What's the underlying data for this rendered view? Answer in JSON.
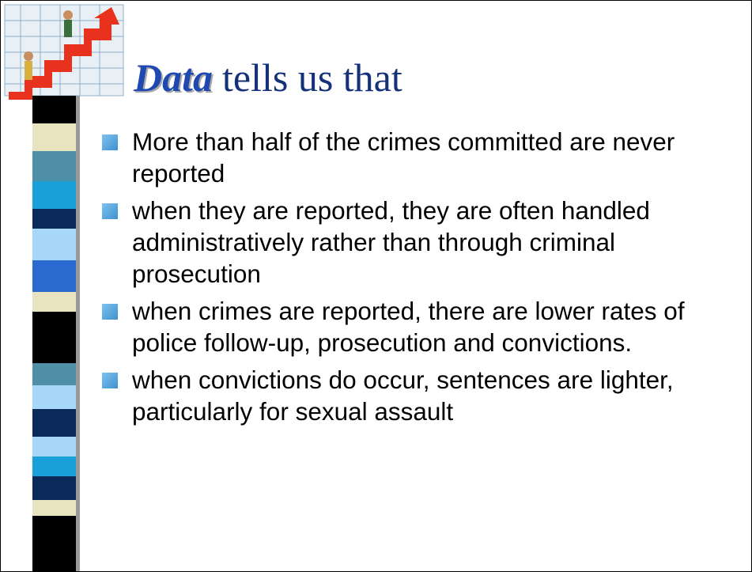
{
  "title": {
    "emphasis": "Data",
    "rest": "tells us that"
  },
  "bullets": [
    "More than half of the crimes committed are never reported",
    "when they are reported, they are often handled administratively rather than through criminal prosecution",
    "when crimes are reported, there are lower rates of police follow-up, prosecution and convictions.",
    "when convictions do occur, sentences are lighter, particularly for sexual assault"
  ]
}
